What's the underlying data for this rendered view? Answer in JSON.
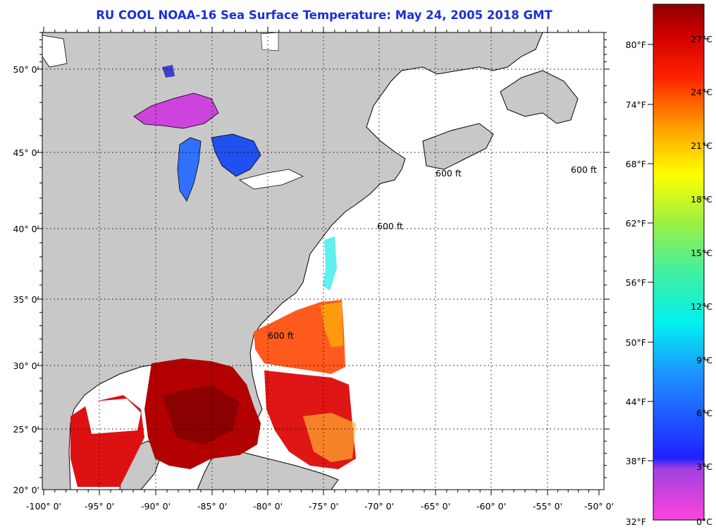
{
  "title": "RU COOL  NOAA-16  Sea Surface Temperature:  May 24, 2005 2018 GMT",
  "map": {
    "lat_ticks": [
      "50° 0'",
      "45° 0'",
      "40° 0'",
      "35° 0'",
      "30° 0'",
      "25° 0'",
      "20° 0'"
    ],
    "lon_ticks": [
      "-100° 0'",
      "-95° 0'",
      "-90° 0'",
      "-85° 0'",
      "-80° 0'",
      "-75° 0'",
      "-70° 0'",
      "-65° 0'",
      "-60° 0'",
      "-55° 0'",
      "-50° 0'"
    ],
    "isobath_label": "600 ft",
    "land_color": "#c8c8c8",
    "ocean_color": "#ffffff"
  },
  "colorbar": {
    "fahrenheit": [
      "80°F",
      "74°F",
      "68°F",
      "62°F",
      "56°F",
      "50°F",
      "44°F",
      "38°F",
      "32°F"
    ],
    "celsius": [
      "27°C",
      "24°C",
      "21°C",
      "18°C",
      "15°C",
      "12°C",
      "9°C",
      "6°C",
      "3°C",
      "0°C"
    ]
  }
}
